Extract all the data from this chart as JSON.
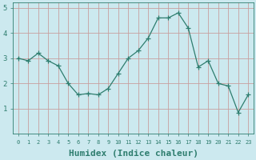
{
  "x": [
    0,
    1,
    2,
    3,
    4,
    5,
    6,
    7,
    8,
    9,
    10,
    11,
    12,
    13,
    14,
    15,
    16,
    17,
    18,
    19,
    20,
    21,
    22,
    23
  ],
  "y": [
    3.0,
    2.9,
    3.2,
    2.9,
    2.7,
    2.0,
    1.55,
    1.6,
    1.55,
    1.8,
    2.4,
    3.0,
    3.3,
    3.8,
    4.6,
    4.6,
    4.8,
    4.2,
    2.65,
    2.9,
    2.0,
    1.9,
    0.85,
    1.55
  ],
  "line_color": "#2e7d6e",
  "marker": "+",
  "marker_size": 4,
  "bg_color": "#cce9ef",
  "grid_color_major": "#c8a0a0",
  "grid_color_minor": "#ddeef2",
  "tick_color": "#2e7d6e",
  "xlabel": "Humidex (Indice chaleur)",
  "xlabel_fontsize": 8,
  "ylim": [
    0,
    5.2
  ],
  "xlim": [
    -0.5,
    23.5
  ],
  "yticks": [
    1,
    2,
    3,
    4,
    5
  ],
  "xticks": [
    0,
    1,
    2,
    3,
    4,
    5,
    6,
    7,
    8,
    9,
    10,
    11,
    12,
    13,
    14,
    15,
    16,
    17,
    18,
    19,
    20,
    21,
    22,
    23
  ]
}
